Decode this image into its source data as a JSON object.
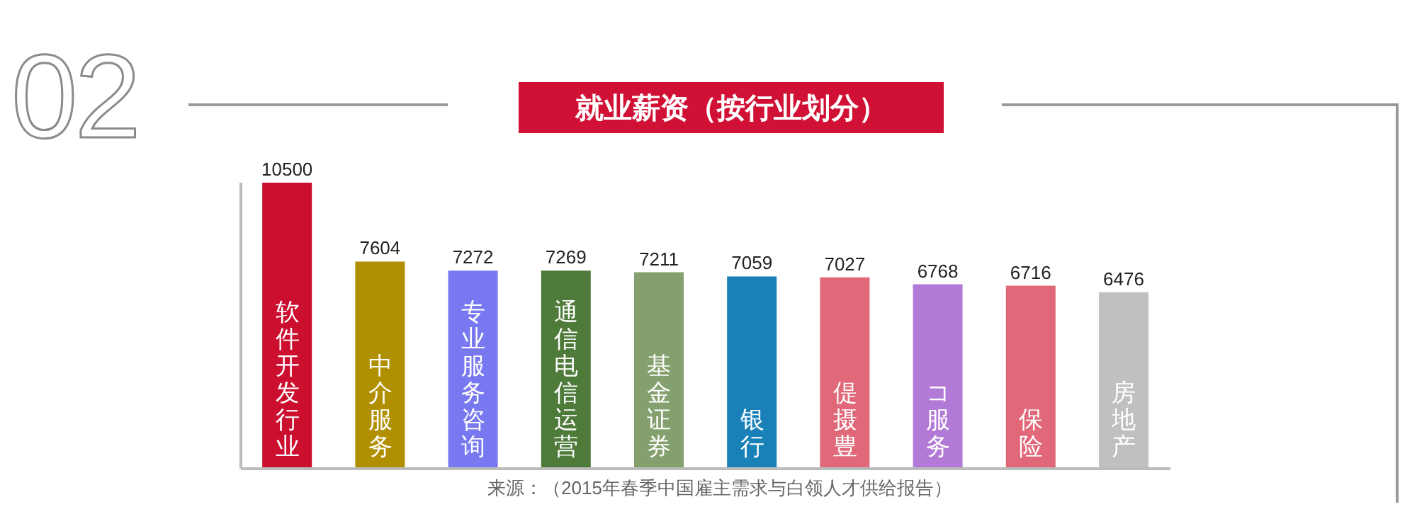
{
  "chart_data": {
    "type": "bar",
    "title": "就业薪资（按行业划分）",
    "categories": [
      "软件开发行业",
      "中介服务",
      "专业服务咨询",
      "通信电信运营",
      "基金证券",
      "银行",
      "偍摄豊",
      "コ服务",
      "保险",
      "房地产"
    ],
    "values": [
      10500,
      7604,
      7272,
      7269,
      7211,
      7059,
      7027,
      6768,
      6716,
      6476
    ],
    "colors": [
      "#cc0e2f",
      "#b08f00",
      "#7878f0",
      "#4e7a3a",
      "#84a06e",
      "#1a80b8",
      "#e06878",
      "#b27ad6",
      "#e06878",
      "#c0c0c0"
    ],
    "data_labels": true,
    "grid": false,
    "legend": false,
    "annotations": [
      "02",
      "来源：（2015年春季中国雇主需求与白领人才供给报告）"
    ]
  }
}
